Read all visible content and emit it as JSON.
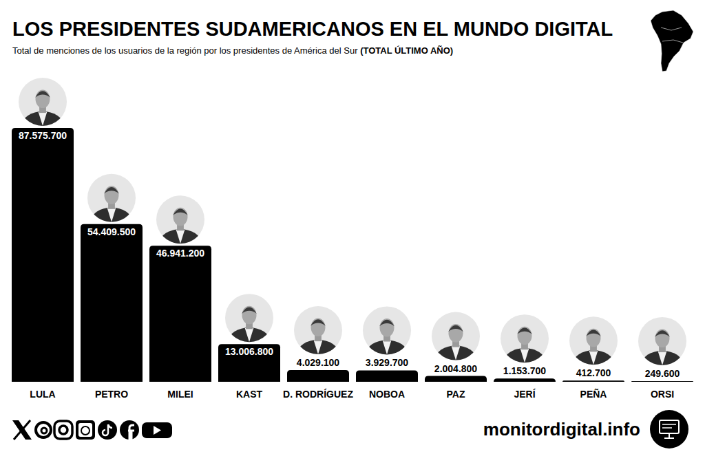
{
  "chart_data": {
    "type": "bar",
    "title": "LOS PRESIDENTES SUDAMERICANOS EN EL MUNDO DIGITAL",
    "subtitle": "Total de menciones de los usuarios de la región por los presidentes de América del Sur",
    "subtitle_note": "(TOTAL ÚLTIMO AÑO)",
    "categories": [
      "LULA",
      "PETRO",
      "MILEI",
      "KAST",
      "D. RODRÍGUEZ",
      "NOBOA",
      "PAZ",
      "JERÍ",
      "PEÑA",
      "ORSI"
    ],
    "values": [
      87575700,
      54409500,
      46941200,
      13006800,
      4029100,
      3929700,
      2004800,
      1153700,
      412700,
      249600
    ],
    "value_labels": [
      "87.575.700",
      "54.409.500",
      "46.941.200",
      "13.006.800",
      "4.029.100",
      "3.929.700",
      "2.004.800",
      "1.153.700",
      "412.700",
      "249.600"
    ],
    "color": "#000000",
    "ylim": [
      0,
      87575700
    ],
    "data_labels": true,
    "tick_labels": "x",
    "grid": false
  },
  "footer": {
    "website": "monitordigital.info"
  }
}
